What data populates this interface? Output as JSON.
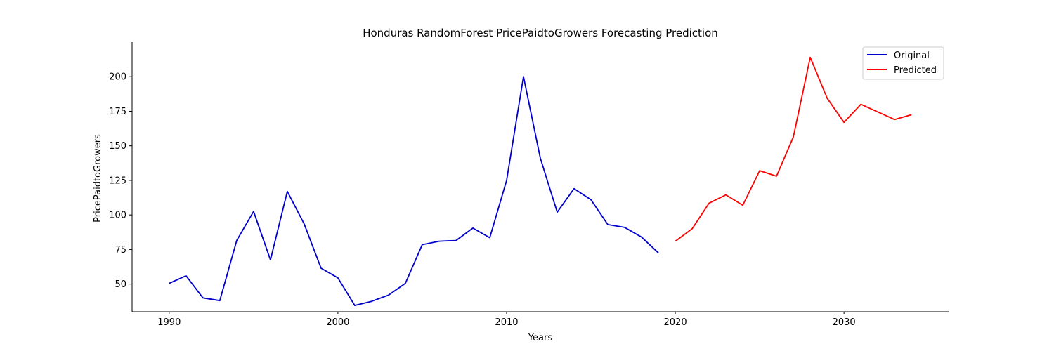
{
  "chart_data": {
    "type": "line",
    "title": "Honduras RandomForest PricePaidtoGrowers Forecasting Prediction",
    "xlabel": "Years",
    "ylabel": "PricePaidtoGrowers",
    "xlim": [
      1987.8,
      2036.2
    ],
    "ylim": [
      30,
      225
    ],
    "xticks": [
      1990,
      2000,
      2010,
      2020,
      2030
    ],
    "yticks": [
      50,
      75,
      100,
      125,
      150,
      175,
      200
    ],
    "grid": false,
    "legend_position": "top-right",
    "series": [
      {
        "name": "Original",
        "color": "#0000cd",
        "x": [
          1990,
          1991,
          1992,
          1993,
          1994,
          1995,
          1996,
          1997,
          1998,
          1999,
          2000,
          2001,
          2002,
          2003,
          2004,
          2005,
          2006,
          2007,
          2008,
          2009,
          2010,
          2011,
          2012,
          2013,
          2014,
          2015,
          2016,
          2017,
          2018,
          2019
        ],
        "values": [
          50.5,
          56,
          40,
          38,
          81.5,
          102.5,
          67.5,
          117,
          93.5,
          61.5,
          54.5,
          34.5,
          37.5,
          42,
          50.5,
          78.5,
          81,
          81.5,
          90.5,
          83.5,
          125,
          200,
          141,
          102,
          119,
          111,
          93,
          91,
          84,
          72.5
        ]
      },
      {
        "name": "Predicted",
        "color": "#ff0000",
        "x": [
          2020,
          2021,
          2022,
          2023,
          2024,
          2025,
          2026,
          2027,
          2028,
          2029,
          2030,
          2031,
          2032,
          2033,
          2034
        ],
        "values": [
          81,
          90,
          108.5,
          114.5,
          107,
          132,
          128,
          156.5,
          214,
          184.5,
          167,
          180,
          174.5,
          169,
          172.5
        ]
      }
    ]
  }
}
